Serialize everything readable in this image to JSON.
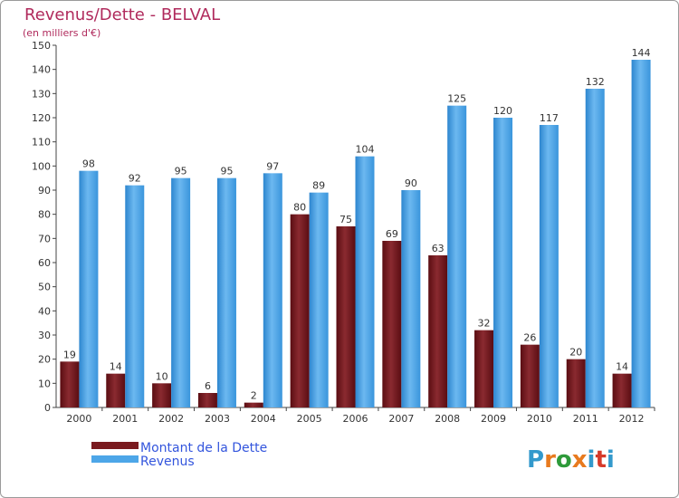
{
  "chart_data": {
    "type": "bar",
    "title": "Revenus/Dette - BELVAL",
    "subtitle": "(en milliers d'€)",
    "categories": [
      "2000",
      "2001",
      "2002",
      "2003",
      "2004",
      "2005",
      "2006",
      "2007",
      "2008",
      "2009",
      "2010",
      "2011",
      "2012"
    ],
    "series": [
      {
        "name": "Montant de la Dette",
        "color": "#7a1a1f",
        "values": [
          19,
          14,
          10,
          6,
          2,
          80,
          75,
          69,
          63,
          32,
          26,
          20,
          14
        ]
      },
      {
        "name": "Revenus",
        "color": "#4da6e8",
        "values": [
          98,
          92,
          95,
          95,
          97,
          89,
          104,
          90,
          125,
          120,
          117,
          132,
          144
        ]
      }
    ],
    "ylim": [
      0,
      150
    ],
    "yticks": [
      0,
      10,
      20,
      30,
      40,
      50,
      60,
      70,
      80,
      90,
      100,
      110,
      120,
      130,
      140,
      150
    ],
    "grid": false,
    "legend_position": "bottom-left"
  },
  "branding": {
    "logo_text": "Proxiti",
    "logo_letters": [
      "P",
      "r",
      "o",
      "x",
      "i",
      "t",
      "i"
    ],
    "logo_colors": [
      "#3399cc",
      "#e87a1e",
      "#2e9a3a",
      "#e87a1e",
      "#3399cc",
      "#d63a2a",
      "#3399cc"
    ]
  },
  "colors": {
    "title": "#b02a5c",
    "legend_text": "#3355dd",
    "axis": "#444444"
  }
}
